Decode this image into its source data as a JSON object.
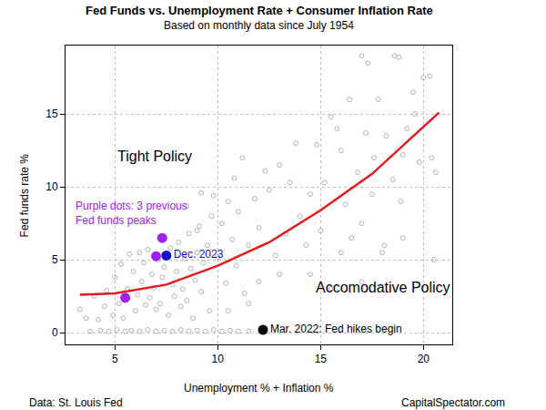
{
  "chart_data": {
    "type": "scatter",
    "title": "Fed Funds vs. Unemployment Rate + Consumer Inflation Rate",
    "subtitle": "Based on monthly data since July 1954",
    "x_label": "Unemployment % + Inflation %",
    "y_label": "Fed funds rate %",
    "source": "Data: St. Louis Fed",
    "credit": "CapitalSpectator.com",
    "annotations": [
      {
        "text": "Tight Policy",
        "color": "#000000"
      },
      {
        "text": "Accomodative Policy",
        "color": "#000000"
      }
    ],
    "xlim": [
      2.6,
      21.4
    ],
    "ylim": [
      -0.8,
      19.7
    ],
    "xticks": [
      5,
      10,
      15,
      20
    ],
    "yticks": [
      0,
      5,
      10,
      15
    ],
    "grid": true,
    "series": [
      {
        "type": "scatter",
        "marker": "open_circle",
        "color": "#b4b4b4",
        "x": [
          3.8,
          4.3,
          4.7,
          5.1,
          5.5,
          5.8,
          6.2,
          6.6,
          7.0,
          7.4,
          7.8,
          8.2,
          8.6,
          9.0,
          9.4,
          9.8,
          10.2,
          10.6,
          11.0,
          11.5,
          3.3,
          3.6,
          4.0,
          4.2,
          4.5,
          4.6,
          4.9,
          5.0,
          5.2,
          5.3,
          5.4,
          5.6,
          5.7,
          5.9,
          6.0,
          6.1,
          6.2,
          6.3,
          6.4,
          6.5,
          6.6,
          6.7,
          6.8,
          6.9,
          7.0,
          7.1,
          7.2,
          7.3,
          7.4,
          7.6,
          7.7,
          7.8,
          7.9,
          8.0,
          8.1,
          8.2,
          8.3,
          8.4,
          8.5,
          8.6,
          8.7,
          8.8,
          8.9,
          9.0,
          9.1,
          9.2,
          9.3,
          9.5,
          9.6,
          9.7,
          8.5,
          9.2,
          9.8,
          10.5,
          10.2,
          9.0,
          11.0,
          10.8,
          11.5,
          12.0,
          12.5,
          12.3,
          11.2,
          13.0,
          13.3,
          12.8,
          10.0,
          10.4,
          10.9,
          11.3,
          12.0,
          11.5,
          10.5,
          13.0,
          14.3,
          14.5,
          15.5,
          17.0,
          10.7,
          11.8,
          15.5,
          16.0,
          16.4,
          17.0,
          17.3,
          17.8,
          18.6,
          18.8,
          19.2,
          19.5,
          20.0,
          20.3,
          20.6,
          20.4,
          19.0,
          18.5,
          17.5,
          17.0,
          16.5,
          16.0,
          18.0,
          18.1,
          15.2,
          14.8,
          14.5,
          14.0,
          13.8,
          13.5,
          15.8,
          17.2,
          18.2,
          19.8,
          20.5,
          19.0,
          16.8,
          15.0,
          16.2,
          17.6,
          18.9,
          19.6
        ],
        "values": [
          0.1,
          0.15,
          0.1,
          0.2,
          0.1,
          0.15,
          0.1,
          0.2,
          0.1,
          0.15,
          0.1,
          0.2,
          0.1,
          0.15,
          0.1,
          0.2,
          0.1,
          0.15,
          0.1,
          0.1,
          1.6,
          1.0,
          2.5,
          0.9,
          1.8,
          2.9,
          1.2,
          3.8,
          2.0,
          4.7,
          1.0,
          3.0,
          5.4,
          4.2,
          1.5,
          2.6,
          5.5,
          3.5,
          4.8,
          1.9,
          5.7,
          2.4,
          4.0,
          3.1,
          1.6,
          5.0,
          2.0,
          3.8,
          4.5,
          1.2,
          5.8,
          3.3,
          2.5,
          4.2,
          6.2,
          1.8,
          3.0,
          5.1,
          2.2,
          6.8,
          4.4,
          1.0,
          3.6,
          5.5,
          7.3,
          2.8,
          4.8,
          6.0,
          1.5,
          8.0,
          8.7,
          9.6,
          9.4,
          9.0,
          7.5,
          7.0,
          8.3,
          10.6,
          6.0,
          7.2,
          9.8,
          11.1,
          12.0,
          11.5,
          6.8,
          5.3,
          5.2,
          3.4,
          4.6,
          2.7,
          3.5,
          2.0,
          1.5,
          4.0,
          6.0,
          4.0,
          3.0,
          3.5,
          6.4,
          9.2,
          14.8,
          12.5,
          16.0,
          19.0,
          18.5,
          16.0,
          19.0,
          18.9,
          14.0,
          16.5,
          17.5,
          17.6,
          11.0,
          12.0,
          12.2,
          10.5,
          9.5,
          7.5,
          6.5,
          5.5,
          5.5,
          6.0,
          10.3,
          12.9,
          9.5,
          8.0,
          13.0,
          10.3,
          14.0,
          13.7,
          13.5,
          11.7,
          5.0,
          6.5,
          11.0,
          7.0,
          8.8,
          12.0,
          9.0,
          15.0
        ]
      },
      {
        "type": "line",
        "line_style": "solid",
        "color": "#e41a1c",
        "x": [
          3.3,
          5,
          7.5,
          10,
          12.5,
          15,
          17.5,
          20,
          20.75
        ],
        "values": [
          2.6,
          2.7,
          3.3,
          4.6,
          6.2,
          8.4,
          10.9,
          14.1,
          15.1
        ]
      },
      {
        "type": "scatter",
        "marker": "circle",
        "color": "#a020f0",
        "name": "Purple dots: 3 previous\nFed funds peaks",
        "x": [
          5.5,
          7.0,
          7.3
        ],
        "values": [
          2.4,
          5.25,
          6.5
        ]
      },
      {
        "type": "scatter",
        "marker": "circle",
        "color": "#1010c8",
        "name": "Dec. 2023",
        "x": [
          7.5
        ],
        "values": [
          5.3
        ]
      },
      {
        "type": "scatter",
        "marker": "circle",
        "color": "#000000",
        "name": "Mar. 2022: Fed hikes begin",
        "x": [
          12.2
        ],
        "values": [
          0.2
        ]
      }
    ]
  }
}
